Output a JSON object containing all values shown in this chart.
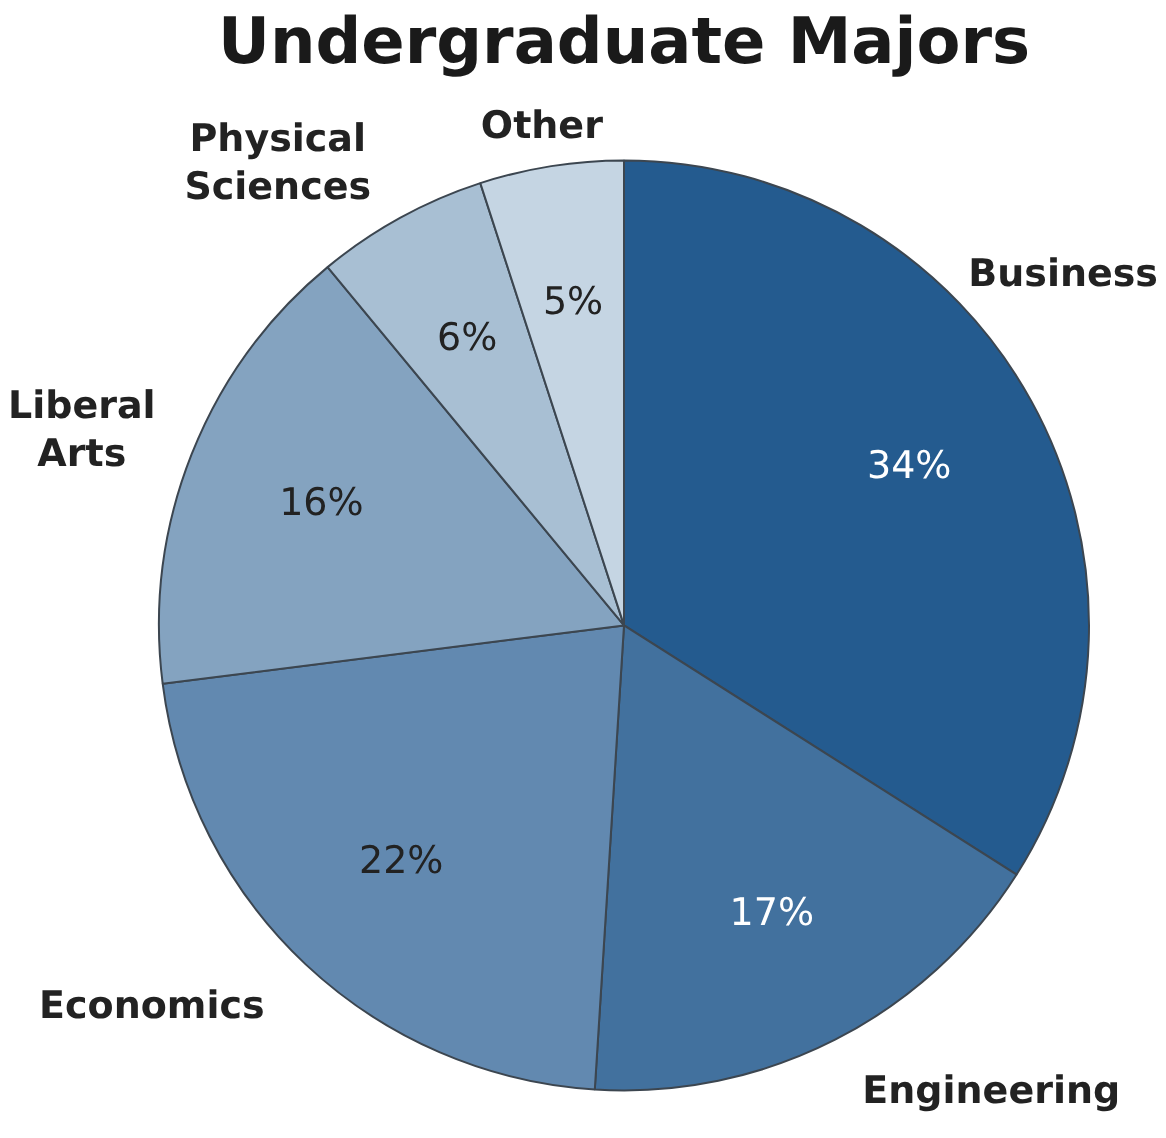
{
  "chart_data": {
    "type": "pie",
    "title": "Undergraduate Majors",
    "categories": [
      "Business",
      "Engineering",
      "Economics",
      "Liberal Arts",
      "Physical Sciences",
      "Other"
    ],
    "values": [
      34,
      17,
      22,
      16,
      6,
      5
    ],
    "value_labels": [
      "34%",
      "17%",
      "22%",
      "16%",
      "6%",
      "5%"
    ],
    "colors": [
      "#245b8f",
      "#42719e",
      "#6289b0",
      "#84a3c0",
      "#a8bfd3",
      "#c5d5e3"
    ],
    "legend": false
  }
}
